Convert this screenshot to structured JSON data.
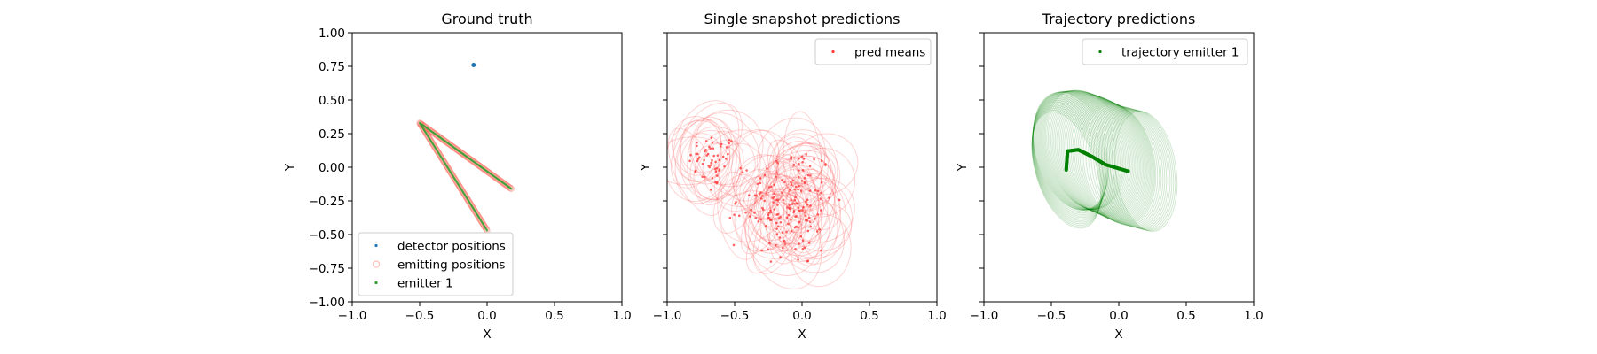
{
  "chart_data": [
    {
      "type": "scatter",
      "title": "Ground truth",
      "xlabel": "X",
      "ylabel": "Y",
      "xlim": [
        -1.0,
        1.0
      ],
      "ylim": [
        -1.0,
        1.0
      ],
      "xticks": [
        "−1.0",
        "−0.5",
        "0.0",
        "0.5",
        "1.0"
      ],
      "yticks": [
        "−1.00",
        "−0.75",
        "−0.50",
        "−0.25",
        "0.00",
        "0.25",
        "0.50",
        "0.75",
        "1.00"
      ],
      "show_y_ticklabels": true,
      "legend_position": "lower-left",
      "series": [
        {
          "name": "detector positions",
          "color": "#1f77b4",
          "marker": "dot",
          "points": [
            [
              -0.1,
              0.76
            ]
          ]
        },
        {
          "name": "emitting positions",
          "color": "#ff6a5c",
          "marker": "ring",
          "path": [
            [
              0.18,
              -0.16
            ],
            [
              -0.5,
              0.33
            ],
            [
              0.0,
              -0.47
            ]
          ]
        },
        {
          "name": "emitter 1",
          "color": "#2ca02c",
          "marker": "dot",
          "path": [
            [
              0.18,
              -0.16
            ],
            [
              -0.5,
              0.33
            ],
            [
              0.0,
              -0.47
            ]
          ]
        }
      ]
    },
    {
      "type": "scatter",
      "title": "Single snapshot predictions",
      "xlabel": "X",
      "ylabel": "Y",
      "xlim": [
        -1.0,
        1.0
      ],
      "ylim": [
        -1.0,
        1.0
      ],
      "xticks": [
        "−1.0",
        "−0.5",
        "0.0",
        "0.5",
        "1.0"
      ],
      "show_y_ticklabels": false,
      "legend_position": "top-right",
      "series": [
        {
          "name": "pred means",
          "color": "#ff3b3b",
          "clusters": [
            {
              "cx": -0.66,
              "cy": 0.05,
              "sx": 0.09,
              "sy": 0.1,
              "n": 55
            },
            {
              "cx": -0.07,
              "cy": -0.28,
              "sx": 0.15,
              "sy": 0.24,
              "n": 150
            },
            {
              "cx": -0.35,
              "cy": -0.3,
              "sx": 0.1,
              "sy": 0.12,
              "n": 25
            }
          ]
        }
      ]
    },
    {
      "type": "line",
      "title": "Trajectory predictions",
      "xlabel": "X",
      "ylabel": "Y",
      "xlim": [
        -1.0,
        1.0
      ],
      "ylim": [
        -1.0,
        1.0
      ],
      "xticks": [
        "−1.0",
        "−0.5",
        "0.0",
        "0.5",
        "1.0"
      ],
      "show_y_ticklabels": false,
      "legend_position": "top-right",
      "series": [
        {
          "name": "trajectory emitter 1",
          "color": "#008000",
          "path": [
            [
              -0.39,
              -0.02
            ],
            [
              -0.38,
              0.12
            ],
            [
              -0.3,
              0.13
            ],
            [
              -0.2,
              0.08
            ],
            [
              -0.1,
              0.02
            ],
            [
              0.07,
              -0.03
            ]
          ]
        }
      ]
    }
  ]
}
